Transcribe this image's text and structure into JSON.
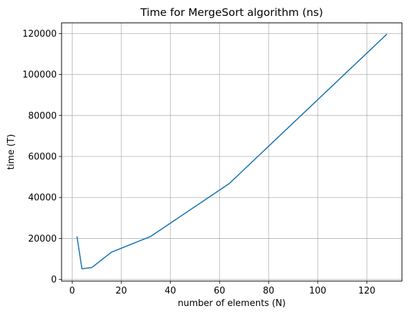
{
  "chart_data": {
    "type": "line",
    "title": "Time for MergeSort algorithm (ns)",
    "xlabel": "number of elements (N)",
    "ylabel": "time (T)",
    "xlim": [
      -4.3,
      134.3
    ],
    "ylim": [
      -800,
      125200
    ],
    "x_ticks": [
      0,
      20,
      40,
      60,
      80,
      100,
      120
    ],
    "y_ticks": [
      0,
      20000,
      40000,
      60000,
      80000,
      100000,
      120000
    ],
    "grid": true,
    "legend": "none",
    "series": [
      {
        "color": "#1f77b4",
        "x": [
          2,
          4,
          8,
          16,
          32,
          64,
          128
        ],
        "y": [
          20700,
          5200,
          5800,
          13300,
          21000,
          46800,
          119500
        ]
      }
    ]
  }
}
